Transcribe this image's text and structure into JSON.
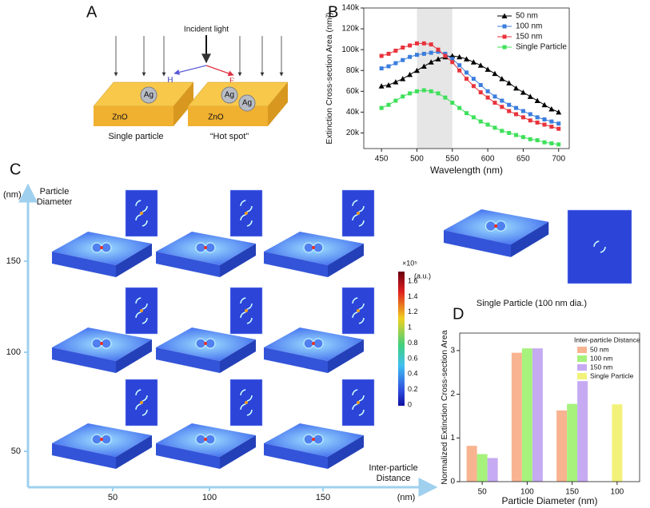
{
  "panel_labels": [
    "A",
    "B",
    "C",
    "D"
  ],
  "panel_a": {
    "incident": "Incident light",
    "h_field": "H",
    "e_field": "E",
    "particles": [
      "Ag",
      "Ag",
      "Ag"
    ],
    "substrates": [
      "ZnO",
      "ZnO"
    ],
    "captions": [
      "Single particle",
      "“Hot spot”"
    ]
  },
  "panel_c": {
    "y_unit": "(nm)",
    "y_label": [
      "Particle",
      "Diameter"
    ],
    "y_ticks": [
      "150",
      "100",
      "50"
    ],
    "x_ticks": [
      "50",
      "100",
      "150"
    ],
    "x_label": [
      "Inter-particle",
      "Distance"
    ],
    "x_unit": "(nm)",
    "colorbar": {
      "scale": "×10⁵",
      "unit": "(a.u.)",
      "ticks": [
        "1.6",
        "1.4",
        "1.2",
        "1",
        "0.8",
        "0.6",
        "0.4",
        "0.2",
        "0"
      ]
    },
    "single_caption": "Single Particle (100 nm dia.)"
  },
  "chart_data": [
    {
      "type": "line",
      "x_label": "Wavelength (nm)",
      "y_label": "Extinction Cross-section Area (nm²)",
      "x": [
        450,
        460,
        470,
        480,
        490,
        500,
        510,
        520,
        530,
        540,
        550,
        560,
        570,
        580,
        590,
        600,
        610,
        620,
        630,
        640,
        650,
        660,
        670,
        680,
        690,
        700
      ],
      "series": [
        {
          "name": "50 nm",
          "color": "#000000",
          "marker": "triangle",
          "values": [
            65000,
            66000,
            69000,
            72000,
            76000,
            80000,
            84000,
            88000,
            91000,
            93000,
            94000,
            93000,
            91000,
            88000,
            85000,
            81000,
            77000,
            72000,
            68000,
            63000,
            59000,
            55000,
            51000,
            47000,
            43000,
            40000
          ]
        },
        {
          "name": "100 nm",
          "color": "#3b7ddd",
          "marker": "square",
          "values": [
            82000,
            84000,
            87000,
            90000,
            93000,
            95000,
            96000,
            97000,
            98000,
            96000,
            91000,
            85000,
            78000,
            72000,
            66000,
            60000,
            55000,
            51000,
            47000,
            44000,
            41000,
            38000,
            35000,
            33000,
            31000,
            29000
          ]
        },
        {
          "name": "150 nm",
          "color": "#e8333c",
          "marker": "square",
          "values": [
            94000,
            96000,
            99000,
            102000,
            104000,
            106000,
            106000,
            105000,
            100000,
            94000,
            88000,
            80000,
            72000,
            65000,
            59000,
            54000,
            49000,
            45000,
            41000,
            38000,
            35000,
            32000,
            30000,
            28000,
            26000,
            24000
          ]
        },
        {
          "name": "Single Particle",
          "color": "#3ee05a",
          "marker": "square",
          "values": [
            44000,
            47000,
            51000,
            55000,
            58000,
            60000,
            61000,
            60000,
            58000,
            54000,
            49000,
            44000,
            39000,
            35000,
            31000,
            28000,
            25000,
            22000,
            20000,
            18000,
            16000,
            14000,
            13000,
            11000,
            10000,
            9000
          ]
        }
      ],
      "shaded_range": [
        500,
        550
      ],
      "xlim": [
        425,
        715
      ],
      "xticks": [
        450,
        500,
        550,
        600,
        650,
        700
      ],
      "ylim": [
        5000,
        140000
      ],
      "yticks": [
        {
          "value": 20000,
          "label": "20k"
        },
        {
          "value": 40000,
          "label": "40k"
        },
        {
          "value": 60000,
          "label": "60k"
        },
        {
          "value": 80000,
          "label": "80k"
        },
        {
          "value": 100000,
          "label": "100k"
        },
        {
          "value": 120000,
          "label": "120k"
        },
        {
          "value": 140000,
          "label": "140k"
        }
      ],
      "legend": "upper right",
      "grid": false
    },
    {
      "type": "bar",
      "x_label": "Particle Diameter (nm)",
      "y_label": "Normalized Extinction Cross-section Area",
      "legend_title": "Inter-particle Distance",
      "categories": [
        "50",
        "100",
        "150",
        "100"
      ],
      "series": [
        {
          "name": "50 nm",
          "color": "#f8b490",
          "values": [
            0.82,
            2.95,
            1.63,
            null
          ]
        },
        {
          "name": "100 nm",
          "color": "#a6f27c",
          "values": [
            0.63,
            3.05,
            1.78,
            null
          ]
        },
        {
          "name": "150 nm",
          "color": "#c6aaf2",
          "values": [
            0.54,
            3.05,
            2.3,
            null
          ]
        },
        {
          "name": "Single Particle",
          "color": "#f2f27a",
          "values": [
            null,
            null,
            null,
            1.77
          ]
        }
      ],
      "ylim": [
        0,
        3.4
      ],
      "yticks": [
        0,
        1,
        2,
        3
      ],
      "legend": "upper right",
      "grid": false
    }
  ]
}
